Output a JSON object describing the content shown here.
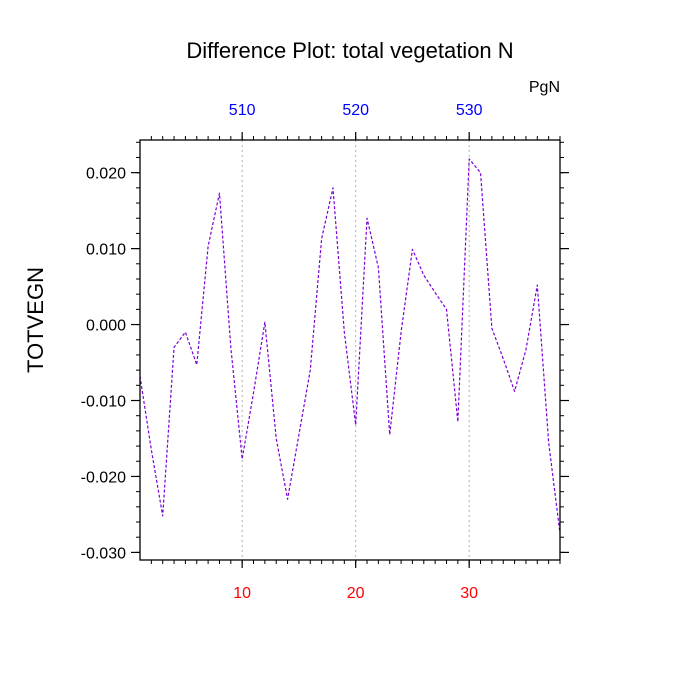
{
  "chart_data": {
    "type": "line",
    "title": "Difference Plot: total vegetation N",
    "ylabel": "TOTVEGN",
    "top_axis_units": "PgN",
    "xlim": [
      1,
      38
    ],
    "ylim": [
      -0.031,
      0.0243
    ],
    "x": [
      1,
      2,
      3,
      4,
      5,
      6,
      7,
      8,
      9,
      10,
      11,
      12,
      13,
      14,
      15,
      16,
      17,
      18,
      19,
      20,
      21,
      22,
      23,
      24,
      25,
      26,
      27,
      28,
      29,
      30,
      31,
      32,
      33,
      34,
      35,
      36,
      37,
      38
    ],
    "series": [
      {
        "values": [
          -0.0068,
          -0.0165,
          -0.0252,
          -0.003,
          -0.001,
          -0.0053,
          0.0103,
          0.0173,
          -0.003,
          -0.0177,
          -0.009,
          0.0003,
          -0.015,
          -0.023,
          -0.0145,
          -0.006,
          0.0113,
          0.018,
          -0.001,
          -0.0132,
          0.014,
          0.0075,
          -0.0145,
          -0.001,
          0.0099,
          0.0065,
          0.0042,
          0.002,
          -0.0128,
          0.0218,
          0.02,
          -0.0005,
          -0.0045,
          -0.0088,
          -0.0033,
          0.0052,
          -0.0155,
          -0.0275
        ],
        "color": "#7a00d6",
        "line_style": "dashed"
      }
    ],
    "yticks": [
      {
        "value": 0.02,
        "label": "0.020"
      },
      {
        "value": 0.01,
        "label": "0.010"
      },
      {
        "value": 0.0,
        "label": "0.000"
      },
      {
        "value": -0.01,
        "label": "-0.010"
      },
      {
        "value": -0.02,
        "label": "-0.020"
      },
      {
        "value": -0.03,
        "label": "-0.030"
      }
    ],
    "xticks_bottom": [
      {
        "value": 10,
        "label": "10"
      },
      {
        "value": 20,
        "label": "20"
      },
      {
        "value": 30,
        "label": "30"
      }
    ],
    "xticks_top": [
      {
        "value": 10,
        "label": "510"
      },
      {
        "value": 20,
        "label": "520"
      },
      {
        "value": 30,
        "label": "530"
      }
    ],
    "grid": "vertical dotted at major x ticks",
    "colors": {
      "bottom_tick_labels": "#ff0000",
      "top_tick_labels": "#0000ff",
      "line": "#7a00d6",
      "grid": "#b0b0b0"
    }
  }
}
